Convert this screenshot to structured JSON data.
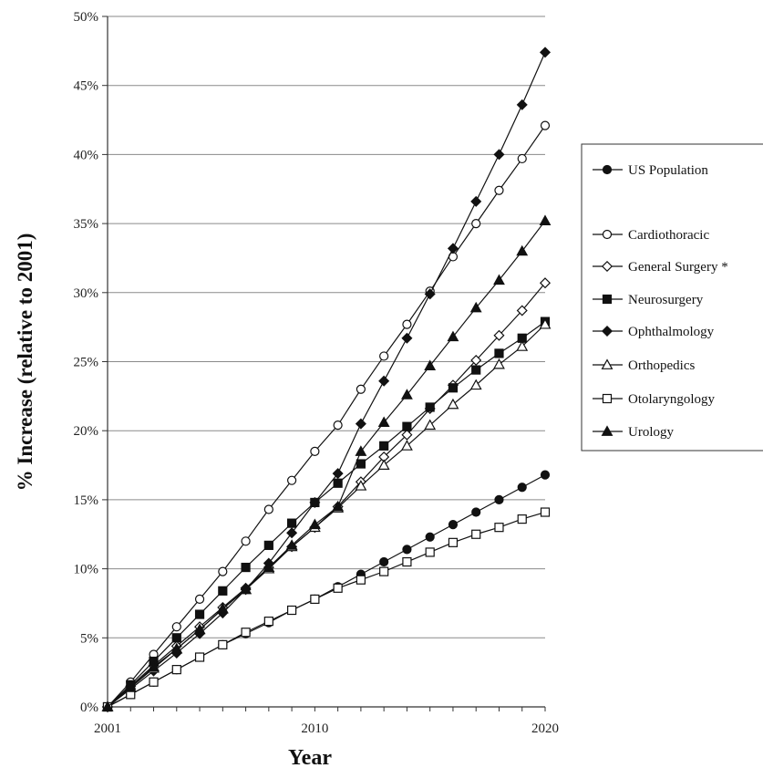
{
  "chart_data": {
    "type": "line",
    "xlabel": "Year",
    "ylabel": "% Increase (relative to 2001)",
    "xlim": [
      2001,
      2020
    ],
    "ylim": [
      0,
      50
    ],
    "x_ticks": [
      "2001",
      "2010",
      "2020"
    ],
    "y_ticks": [
      "0%",
      "5%",
      "10%",
      "15%",
      "20%",
      "25%",
      "30%",
      "35%",
      "40%",
      "45%",
      "50%"
    ],
    "grid": true,
    "legend_position": "right",
    "x": [
      2001,
      2002,
      2003,
      2004,
      2005,
      2006,
      2007,
      2008,
      2009,
      2010,
      2011,
      2012,
      2013,
      2014,
      2015,
      2016,
      2017,
      2018,
      2019,
      2020
    ],
    "series": [
      {
        "name": "US Population",
        "marker": "circle",
        "filled": true,
        "values": [
          0,
          0.9,
          1.8,
          2.7,
          3.6,
          4.5,
          5.3,
          6.1,
          7.0,
          7.8,
          8.7,
          9.6,
          10.5,
          11.4,
          12.3,
          13.2,
          14.1,
          15.0,
          15.9,
          16.8
        ]
      },
      {
        "name": "Cardiothoracic",
        "marker": "circle",
        "filled": false,
        "values": [
          0,
          1.8,
          3.8,
          5.8,
          7.8,
          9.8,
          12.0,
          14.3,
          16.4,
          18.5,
          20.4,
          23.0,
          25.4,
          27.7,
          30.1,
          32.6,
          35.0,
          37.4,
          39.7,
          42.1
        ]
      },
      {
        "name": "General Surgery *",
        "marker": "diamond",
        "filled": false,
        "values": [
          0,
          1.5,
          3.0,
          4.4,
          5.8,
          7.2,
          8.6,
          10.1,
          11.6,
          13.0,
          14.5,
          16.3,
          18.1,
          19.7,
          21.6,
          23.3,
          25.1,
          26.9,
          28.7,
          30.7
        ]
      },
      {
        "name": "Neurosurgery",
        "marker": "square",
        "filled": true,
        "values": [
          0,
          1.6,
          3.3,
          5.0,
          6.7,
          8.4,
          10.1,
          11.7,
          13.3,
          14.8,
          16.2,
          17.6,
          18.9,
          20.3,
          21.7,
          23.1,
          24.4,
          25.6,
          26.7,
          27.9
        ]
      },
      {
        "name": "Ophthalmology",
        "marker": "diamond",
        "filled": true,
        "values": [
          0,
          1.3,
          2.6,
          3.9,
          5.3,
          6.8,
          8.5,
          10.4,
          12.6,
          14.8,
          16.9,
          20.5,
          23.6,
          26.7,
          29.9,
          33.2,
          36.6,
          40.0,
          43.6,
          47.4
        ]
      },
      {
        "name": "Orthopedics",
        "marker": "triangle",
        "filled": false,
        "values": [
          0,
          1.4,
          2.8,
          4.2,
          5.6,
          7.1,
          8.5,
          10.0,
          11.6,
          13.0,
          14.4,
          16.0,
          17.5,
          18.9,
          20.4,
          21.9,
          23.3,
          24.8,
          26.1,
          27.7
        ]
      },
      {
        "name": "Otolaryngology",
        "marker": "square",
        "filled": false,
        "values": [
          0,
          0.9,
          1.8,
          2.7,
          3.6,
          4.5,
          5.4,
          6.2,
          7.0,
          7.8,
          8.6,
          9.2,
          9.8,
          10.5,
          11.2,
          11.9,
          12.5,
          13.0,
          13.6,
          14.1
        ]
      },
      {
        "name": "Urology",
        "marker": "triangle",
        "filled": true,
        "values": [
          0,
          1.4,
          2.9,
          4.2,
          5.6,
          7.1,
          8.5,
          10.1,
          11.7,
          13.2,
          14.5,
          18.5,
          20.6,
          22.6,
          24.7,
          26.8,
          28.9,
          30.9,
          33.0,
          35.2
        ]
      }
    ]
  }
}
